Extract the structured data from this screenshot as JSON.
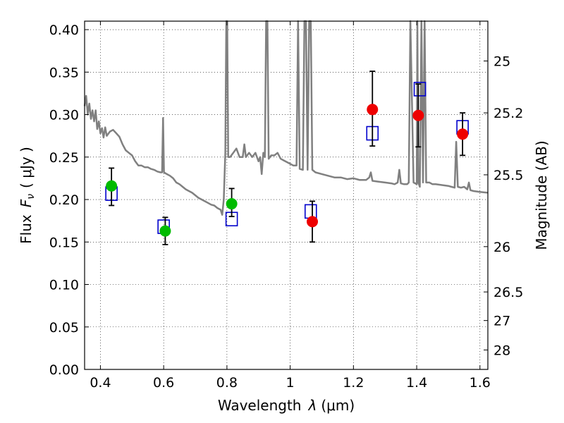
{
  "chart_data": {
    "type": "scatter",
    "title": "",
    "xlabel_prefix": "Wavelength",
    "xlabel_symbol": "λ",
    "xlabel_unit": "(μm)",
    "ylabel_prefix": "Flux",
    "ylabel_symbol": "F",
    "ylabel_subscript": "ν",
    "ylabel_unit": "( μJy )",
    "y2label": "Magnitude (AB)",
    "xlim": [
      0.35,
      1.625
    ],
    "ylim": [
      0.0,
      0.41
    ],
    "grid": true,
    "x_ticks": [
      {
        "value": 0.4,
        "label": "0.4"
      },
      {
        "value": 0.6,
        "label": "0.6"
      },
      {
        "value": 0.8,
        "label": "0.8"
      },
      {
        "value": 1.0,
        "label": "1"
      },
      {
        "value": 1.2,
        "label": "1.2"
      },
      {
        "value": 1.4,
        "label": "1.4"
      },
      {
        "value": 1.6,
        "label": "1.6"
      }
    ],
    "y_ticks": [
      {
        "value": 0.0,
        "label": "0.00"
      },
      {
        "value": 0.05,
        "label": "0.05"
      },
      {
        "value": 0.1,
        "label": "0.10"
      },
      {
        "value": 0.15,
        "label": "0.15"
      },
      {
        "value": 0.2,
        "label": "0.20"
      },
      {
        "value": 0.25,
        "label": "0.25"
      },
      {
        "value": 0.3,
        "label": "0.30"
      },
      {
        "value": 0.35,
        "label": "0.35"
      },
      {
        "value": 0.4,
        "label": "0.40"
      }
    ],
    "mag_ticks": [
      {
        "mag": 25.0,
        "label": "25"
      },
      {
        "mag": 25.2,
        "label": "25.2"
      },
      {
        "mag": 25.5,
        "label": "25.5"
      },
      {
        "mag": 26.0,
        "label": "26"
      },
      {
        "mag": 26.5,
        "label": "26.5"
      },
      {
        "mag": 27.0,
        "label": "27"
      },
      {
        "mag": 28.0,
        "label": "28"
      }
    ],
    "series": [
      {
        "kind": "line",
        "color": "#808080",
        "points": [
          [
            0.35,
            0.31
          ],
          [
            0.355,
            0.322
          ],
          [
            0.36,
            0.3
          ],
          [
            0.365,
            0.313
          ],
          [
            0.37,
            0.295
          ],
          [
            0.375,
            0.305
          ],
          [
            0.38,
            0.292
          ],
          [
            0.385,
            0.305
          ],
          [
            0.39,
            0.283
          ],
          [
            0.395,
            0.292
          ],
          [
            0.4,
            0.278
          ],
          [
            0.405,
            0.284
          ],
          [
            0.41,
            0.273
          ],
          [
            0.415,
            0.285
          ],
          [
            0.42,
            0.275
          ],
          [
            0.43,
            0.28
          ],
          [
            0.44,
            0.282
          ],
          [
            0.45,
            0.278
          ],
          [
            0.46,
            0.274
          ],
          [
            0.47,
            0.265
          ],
          [
            0.48,
            0.258
          ],
          [
            0.49,
            0.255
          ],
          [
            0.5,
            0.252
          ],
          [
            0.51,
            0.245
          ],
          [
            0.52,
            0.24
          ],
          [
            0.53,
            0.24
          ],
          [
            0.54,
            0.238
          ],
          [
            0.55,
            0.238
          ],
          [
            0.56,
            0.236
          ],
          [
            0.57,
            0.235
          ],
          [
            0.58,
            0.233
          ],
          [
            0.59,
            0.232
          ],
          [
            0.595,
            0.232
          ],
          [
            0.598,
            0.296
          ],
          [
            0.601,
            0.232
          ],
          [
            0.61,
            0.23
          ],
          [
            0.62,
            0.228
          ],
          [
            0.63,
            0.225
          ],
          [
            0.64,
            0.22
          ],
          [
            0.65,
            0.218
          ],
          [
            0.66,
            0.215
          ],
          [
            0.67,
            0.212
          ],
          [
            0.68,
            0.21
          ],
          [
            0.69,
            0.208
          ],
          [
            0.7,
            0.205
          ],
          [
            0.71,
            0.202
          ],
          [
            0.72,
            0.2
          ],
          [
            0.73,
            0.198
          ],
          [
            0.74,
            0.196
          ],
          [
            0.75,
            0.194
          ],
          [
            0.76,
            0.193
          ],
          [
            0.77,
            0.19
          ],
          [
            0.78,
            0.188
          ],
          [
            0.785,
            0.182
          ],
          [
            0.79,
            0.2
          ],
          [
            0.795,
            0.255
          ],
          [
            0.798,
            0.41
          ],
          [
            0.801,
            0.41
          ],
          [
            0.804,
            0.25
          ],
          [
            0.81,
            0.25
          ],
          [
            0.82,
            0.255
          ],
          [
            0.83,
            0.26
          ],
          [
            0.84,
            0.25
          ],
          [
            0.85,
            0.25
          ],
          [
            0.855,
            0.265
          ],
          [
            0.86,
            0.25
          ],
          [
            0.87,
            0.255
          ],
          [
            0.88,
            0.25
          ],
          [
            0.89,
            0.255
          ],
          [
            0.9,
            0.245
          ],
          [
            0.905,
            0.25
          ],
          [
            0.91,
            0.23
          ],
          [
            0.915,
            0.255
          ],
          [
            0.92,
            0.25
          ],
          [
            0.924,
            0.41
          ],
          [
            0.928,
            0.41
          ],
          [
            0.932,
            0.248
          ],
          [
            0.94,
            0.252
          ],
          [
            0.95,
            0.252
          ],
          [
            0.96,
            0.255
          ],
          [
            0.97,
            0.248
          ],
          [
            0.98,
            0.246
          ],
          [
            0.99,
            0.244
          ],
          [
            1.0,
            0.242
          ],
          [
            1.01,
            0.24
          ],
          [
            1.02,
            0.24
          ],
          [
            1.025,
            0.41
          ],
          [
            1.03,
            0.236
          ],
          [
            1.04,
            0.235
          ],
          [
            1.045,
            0.41
          ],
          [
            1.05,
            0.41
          ],
          [
            1.055,
            0.235
          ],
          [
            1.06,
            0.41
          ],
          [
            1.065,
            0.41
          ],
          [
            1.07,
            0.235
          ],
          [
            1.08,
            0.232
          ],
          [
            1.1,
            0.23
          ],
          [
            1.12,
            0.228
          ],
          [
            1.14,
            0.226
          ],
          [
            1.16,
            0.226
          ],
          [
            1.18,
            0.224
          ],
          [
            1.2,
            0.225
          ],
          [
            1.22,
            0.223
          ],
          [
            1.24,
            0.223
          ],
          [
            1.25,
            0.226
          ],
          [
            1.255,
            0.232
          ],
          [
            1.26,
            0.222
          ],
          [
            1.28,
            0.221
          ],
          [
            1.3,
            0.22
          ],
          [
            1.32,
            0.219
          ],
          [
            1.33,
            0.218
          ],
          [
            1.34,
            0.22
          ],
          [
            1.345,
            0.235
          ],
          [
            1.35,
            0.219
          ],
          [
            1.36,
            0.218
          ],
          [
            1.37,
            0.218
          ],
          [
            1.375,
            0.22
          ],
          [
            1.38,
            0.41
          ],
          [
            1.39,
            0.22
          ],
          [
            1.4,
            0.218
          ],
          [
            1.402,
            0.41
          ],
          [
            1.405,
            0.22
          ],
          [
            1.41,
            0.215
          ],
          [
            1.415,
            0.41
          ],
          [
            1.42,
            0.22
          ],
          [
            1.425,
            0.41
          ],
          [
            1.43,
            0.22
          ],
          [
            1.44,
            0.22
          ],
          [
            1.45,
            0.218
          ],
          [
            1.46,
            0.218
          ],
          [
            1.48,
            0.217
          ],
          [
            1.5,
            0.216
          ],
          [
            1.51,
            0.215
          ],
          [
            1.52,
            0.214
          ],
          [
            1.525,
            0.268
          ],
          [
            1.53,
            0.215
          ],
          [
            1.54,
            0.214
          ],
          [
            1.55,
            0.215
          ],
          [
            1.56,
            0.212
          ],
          [
            1.565,
            0.22
          ],
          [
            1.57,
            0.211
          ],
          [
            1.58,
            0.21
          ],
          [
            1.6,
            0.209
          ],
          [
            1.625,
            0.208
          ]
        ]
      },
      {
        "kind": "model-squares",
        "color": "#0000cc",
        "points": [
          [
            0.435,
            0.207
          ],
          [
            0.6,
            0.168
          ],
          [
            0.815,
            0.177
          ],
          [
            1.065,
            0.186
          ],
          [
            1.26,
            0.278
          ],
          [
            1.41,
            0.33
          ],
          [
            1.545,
            0.285
          ]
        ]
      },
      {
        "kind": "observed",
        "color": "#00bb00",
        "points": [
          {
            "x": 0.435,
            "y": 0.216,
            "yerr": [
              0.023,
              0.021
            ]
          },
          {
            "x": 0.605,
            "y": 0.163,
            "yerr": [
              0.016,
              0.016
            ]
          },
          {
            "x": 0.815,
            "y": 0.195,
            "yerr": [
              0.015,
              0.018
            ]
          }
        ]
      },
      {
        "kind": "observed",
        "color": "#ee0000",
        "points": [
          {
            "x": 1.07,
            "y": 0.174,
            "yerr": [
              0.024,
              0.024
            ]
          },
          {
            "x": 1.26,
            "y": 0.306,
            "yerr": [
              0.043,
              0.045
            ]
          },
          {
            "x": 1.405,
            "y": 0.299,
            "yerr": [
              0.037,
              0.037
            ]
          },
          {
            "x": 1.545,
            "y": 0.277,
            "yerr": [
              0.025,
              0.025
            ]
          }
        ]
      }
    ]
  }
}
